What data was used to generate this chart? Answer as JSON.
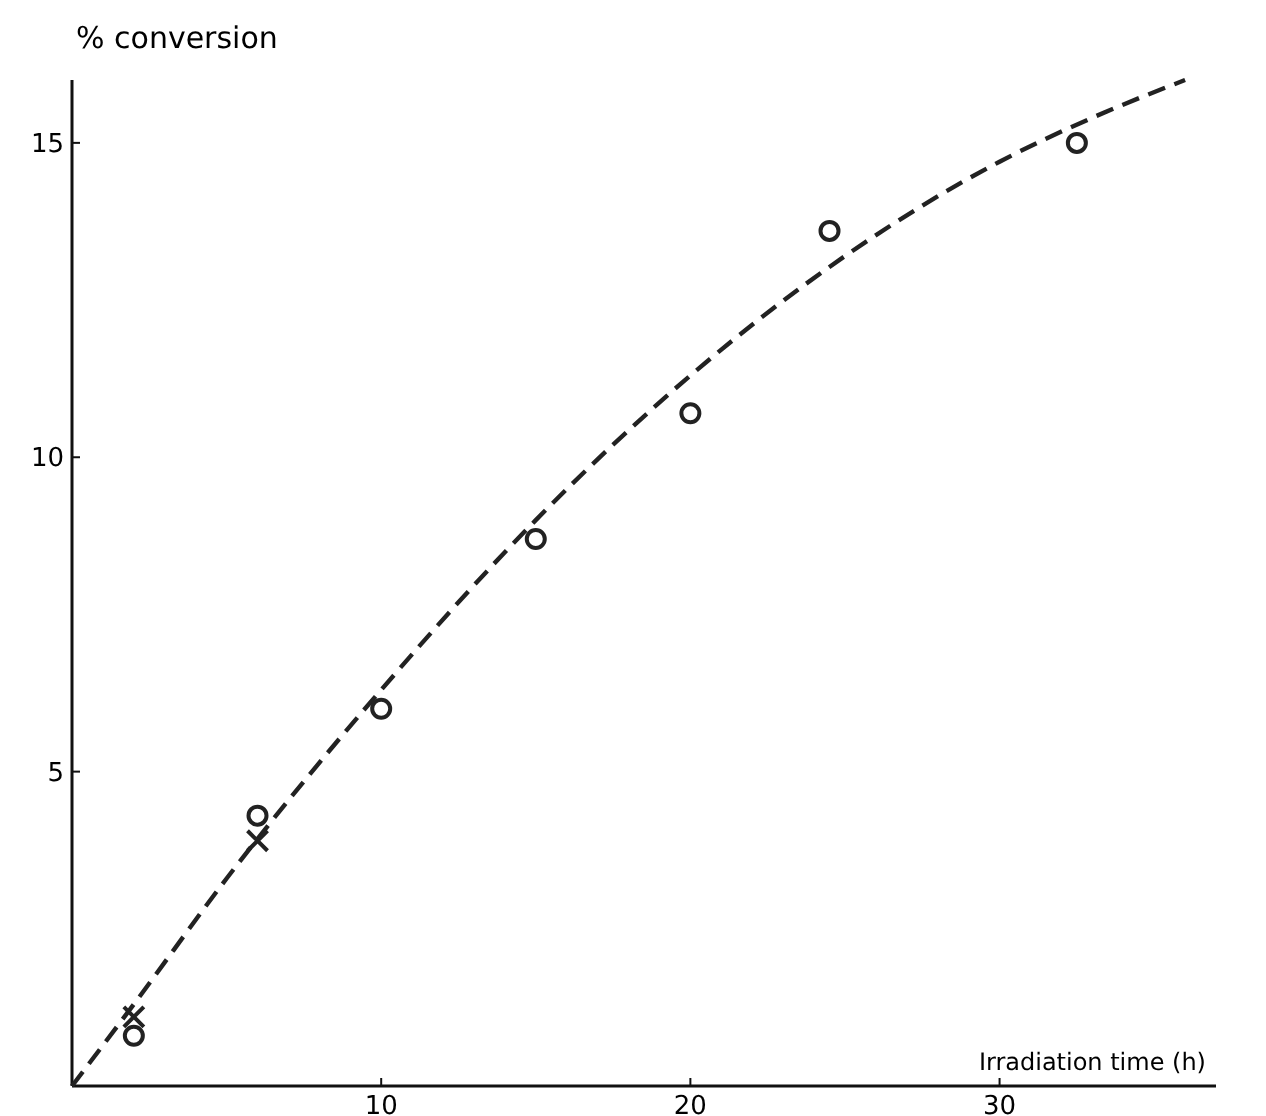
{
  "chart_data": {
    "type": "scatter",
    "ylabel": "% conversion",
    "xlabel": "Irradiation time (h)",
    "xlim": [
      0,
      37
    ],
    "ylim": [
      0,
      16
    ],
    "xticks": [
      10,
      20,
      30
    ],
    "yticks": [
      5,
      10,
      15
    ],
    "grid": false,
    "series": [
      {
        "type": "line",
        "color": "#222222",
        "line_style": "dashed",
        "marker": "none",
        "x": [
          0,
          2,
          5,
          10,
          15,
          20,
          25,
          30,
          33,
          36
        ],
        "values": [
          0,
          1.3,
          3.3,
          6.3,
          9,
          11.3,
          13.2,
          14.7,
          15.4,
          16
        ]
      },
      {
        "color": "#222222",
        "marker": "circle",
        "x": [
          2,
          6,
          10,
          15,
          20,
          24.5,
          32.5
        ],
        "values": [
          0.8,
          4.3,
          6,
          8.7,
          10.7,
          13.6,
          15
        ]
      },
      {
        "color": "#222222",
        "marker": "cross",
        "x": [
          2,
          6
        ],
        "values": [
          1.1,
          3.9
        ]
      }
    ]
  }
}
